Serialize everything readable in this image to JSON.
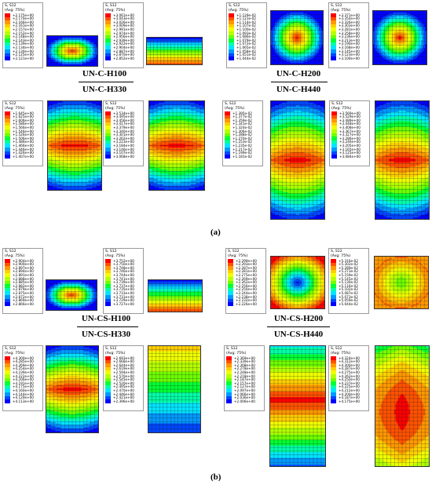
{
  "panel_a": {
    "tag": "(a)",
    "titles": {
      "c_h100": "UN-C-H100",
      "c_h330": "UN-C-H330",
      "c_h200": "UN-C-H200",
      "c_h440": "UN-C-H440"
    },
    "legends": [
      {
        "id": "a1",
        "header": "S, S12",
        "avg": "(Avg: 75%)",
        "values": [
          "+2.175e+00",
          "+2.170e+00",
          "+2.166e+00",
          "+2.161e+00",
          "+2.157e+00",
          "+2.152e+00",
          "+2.148e+00",
          "+2.143e+00",
          "+2.139e+00",
          "+2.134e+00",
          "+2.130e+00",
          "+2.125e+00",
          "+2.121e+00"
        ]
      },
      {
        "id": "a2",
        "header": "S, S12",
        "avg": "(Avg: 75%)",
        "values": [
          "+3.061e+00",
          "+3.043e+00",
          "+3.026e+00",
          "+3.009e+00",
          "+2.991e+00",
          "+2.974e+00",
          "+2.956e+00",
          "+2.939e+00",
          "+2.922e+00",
          "+2.904e+00",
          "+2.887e+00",
          "+2.870e+00",
          "+2.852e+00"
        ]
      },
      {
        "id": "a3",
        "header": "S, S12",
        "avg": "(Avg: 75%)",
        "values": [
          "+1.129e-02",
          "+1.121e-02",
          "+1.114e-02",
          "+1.107e-02",
          "+1.100e-02",
          "+1.093e-02",
          "+1.086e-02",
          "+1.079e-02",
          "+1.072e-02",
          "+1.065e-02",
          "+1.058e-02",
          "+1.051e-02",
          "+1.044e-02"
        ]
      },
      {
        "id": "a4",
        "header": "S, S12",
        "avg": "(Avg: 75%)",
        "values": [
          "+3.371e+00",
          "+3.354e+00",
          "+3.326e+00",
          "+3.303e+00",
          "+3.281e+00",
          "+3.258e+00",
          "+3.236e+00",
          "+3.213e+00",
          "+3.190e+00",
          "+3.168e+00",
          "+3.145e+00",
          "+3.123e+00",
          "+3.100e+00"
        ]
      },
      {
        "id": "a5",
        "header": "S, S12",
        "avg": "(Avg: 75%)",
        "values": [
          "+1.645e+00",
          "+1.625e+00",
          "+1.606e+00",
          "+1.586e+00",
          "+1.566e+00",
          "+1.546e+00",
          "+1.526e+00",
          "+1.506e+00",
          "+1.486e+00",
          "+1.466e+00",
          "+1.446e+00",
          "+1.426e+00",
          "+1.407e+00"
        ]
      },
      {
        "id": "a6",
        "header": "S, S12",
        "avg": "(Avg: 75%)",
        "values": [
          "+3.534e+00",
          "+3.495e+00",
          "+3.456e+00",
          "+3.417e+00",
          "+3.379e+00",
          "+3.340e+00",
          "+3.301e+00",
          "+3.262e+00",
          "+3.223e+00",
          "+3.184e+00",
          "+3.146e+00",
          "+3.107e+00",
          "+3.068e+00"
        ]
      },
      {
        "id": "a7",
        "header": "S, S12",
        "avg": "(Avg: 75%)",
        "values": [
          "+1.395e-02",
          "+1.377e-02",
          "+1.359e-02",
          "+1.341e-02",
          "+1.324e-02",
          "+1.306e-02",
          "+1.288e-02",
          "+1.270e-02",
          "+1.253e-02",
          "+1.235e-02",
          "+1.217e-02",
          "+1.199e-02",
          "+1.181e-02"
        ]
      },
      {
        "id": "a8",
        "header": "S, S12",
        "avg": "(Avg: 75%)",
        "values": [
          "+3.569e+00",
          "+3.529e+00",
          "+3.489e+00",
          "+3.448e+00",
          "+3.408e+00",
          "+3.367e+00",
          "+3.327e+00",
          "+3.286e+00",
          "+3.246e+00",
          "+3.205e+00",
          "+3.165e+00",
          "+3.125e+00",
          "+3.084e+00"
        ]
      }
    ]
  },
  "panel_b": {
    "tag": "(b)",
    "titles": {
      "cs_h100": "UN-CS-H100",
      "cs_h330": "UN-CS-H330",
      "cs_h200": "UN-CS-H200",
      "cs_h440": "UN-CS-H440"
    },
    "legends": [
      {
        "id": "b1",
        "header": "S, S12",
        "avg": "(Avg: 75%)",
        "values": [
          "+2.904e+00",
          "+2.900e+00",
          "+2.897e+00",
          "+2.894e+00",
          "+2.891e+00",
          "+2.888e+00",
          "+2.885e+00",
          "+2.882e+00",
          "+2.879e+00",
          "+2.875e+00",
          "+2.872e+00",
          "+2.869e+00",
          "+2.866e+00"
        ]
      },
      {
        "id": "b2",
        "header": "S, S12",
        "avg": "(Avg: 75%)",
        "values": [
          "+3.752e+00",
          "+3.750e+00",
          "+3.748e+00",
          "+3.746e+00",
          "+3.744e+00",
          "+3.741e+00",
          "+3.739e+00",
          "+3.737e+00",
          "+3.735e+00",
          "+3.733e+00",
          "+3.731e+00",
          "+3.729e+00",
          "+3.727e+00"
        ]
      },
      {
        "id": "b3",
        "header": "S, S12",
        "avg": "(Avg: 75%)",
        "values": [
          "+2.299e+00",
          "+2.293e+00",
          "+2.287e+00",
          "+2.281e+00",
          "+2.275e+00",
          "+2.269e+00",
          "+2.262e+00",
          "+2.256e+00",
          "+2.250e+00",
          "+2.244e+00",
          "+2.238e+00",
          "+2.232e+00",
          "+2.226e+00"
        ]
      },
      {
        "id": "b4",
        "header": "S, S12",
        "avg": "(Avg: 75%)",
        "values": [
          "+5.316e-02",
          "+5.302e-02",
          "+5.289e-02",
          "+5.273e-02",
          "+5.159e-02",
          "+5.145e-02",
          "+5.130e-02",
          "+5.116e-02",
          "+5.102e-02",
          "+5.087e-02",
          "+5.073e-02",
          "+5.059e-02",
          "+5.044e-02"
        ]
      },
      {
        "id": "b5",
        "header": "S, S12",
        "avg": "(Avg: 75%)",
        "values": [
          "+4.300e+00",
          "+4.285e+00",
          "+4.269e+00",
          "+4.254e+00",
          "+4.239e+00",
          "+4.222e+00",
          "+4.206e+00",
          "+4.191e+00",
          "+4.175e+00",
          "+4.160e+00",
          "+4.144e+00",
          "+4.129e+00",
          "+4.113e+00"
        ]
      },
      {
        "id": "b6",
        "header": "S, S12",
        "avg": "(Avg: 75%)",
        "values": [
          "+2.693e+00",
          "+2.668e+00",
          "+2.644e+00",
          "+2.619e+00",
          "+2.594e+00",
          "+2.570e+00",
          "+2.545e+00",
          "+2.520e+00",
          "+2.495e+00",
          "+2.470e+00",
          "+2.446e+00",
          "+2.421e+00",
          "+2.396e+00"
        ]
      },
      {
        "id": "b7",
        "header": "S, S12",
        "avg": "(Avg: 75%)",
        "values": [
          "+2.369e+00",
          "+2.339e+00",
          "+2.308e+00",
          "+2.278e+00",
          "+2.248e+00",
          "+2.218e+00",
          "+2.187e+00",
          "+2.157e+00",
          "+2.127e+00",
          "+2.097e+00",
          "+2.066e+00",
          "+2.036e+00",
          "+2.006e+00"
        ]
      },
      {
        "id": "b8",
        "header": "S, S12",
        "avg": "(Avg: 75%)",
        "values": [
          "+4.324e+00",
          "+4.312e+00",
          "+4.300e+00",
          "+4.287e+00",
          "+4.275e+00",
          "+4.262e+00",
          "+4.250e+00",
          "+4.237e+00",
          "+4.225e+00",
          "+4.212e+00",
          "+4.200e+00",
          "+4.187e+00",
          "+4.175e+00"
        ]
      }
    ]
  },
  "colors": {
    "scale": [
      "#ff0000",
      "#ff5200",
      "#ff9800",
      "#ffcf00",
      "#f0ff00",
      "#b5ff00",
      "#6eff00",
      "#00ff33",
      "#00ffa8",
      "#00e6ff",
      "#0099ff",
      "#0047ff",
      "#0000ff"
    ],
    "mesh": "#1a1a1a"
  }
}
